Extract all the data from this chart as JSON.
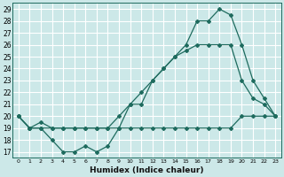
{
  "xlabel": "Humidex (Indice chaleur)",
  "bg_color": "#cce8e8",
  "grid_color": "#ffffff",
  "line_color": "#1e6b5e",
  "xlim": [
    -0.5,
    23.5
  ],
  "ylim": [
    16.5,
    29.5
  ],
  "xticks": [
    0,
    1,
    2,
    3,
    4,
    5,
    6,
    7,
    8,
    9,
    10,
    11,
    12,
    13,
    14,
    15,
    16,
    17,
    18,
    19,
    20,
    21,
    22,
    23
  ],
  "yticks": [
    17,
    18,
    19,
    20,
    21,
    22,
    23,
    24,
    25,
    26,
    27,
    28,
    29
  ],
  "line1_x": [
    0,
    1,
    2,
    3,
    4,
    5,
    6,
    7,
    8,
    9,
    10,
    11,
    12,
    13,
    14,
    15,
    16,
    17,
    18,
    19,
    20,
    21,
    22,
    23
  ],
  "line1_y": [
    20,
    19,
    19,
    19,
    19,
    19,
    19,
    19,
    19,
    19,
    19,
    19,
    19,
    19,
    19,
    19,
    19,
    19,
    19,
    19,
    20,
    20,
    20,
    20
  ],
  "line2_x": [
    0,
    1,
    2,
    3,
    4,
    5,
    6,
    7,
    8,
    9,
    10,
    11,
    12,
    13,
    14,
    15,
    16,
    17,
    18,
    19,
    20,
    21,
    22,
    23
  ],
  "line2_y": [
    20,
    19,
    19,
    18,
    17,
    17,
    17.5,
    17,
    17.5,
    19,
    21,
    22,
    23,
    24,
    25,
    25.5,
    26,
    26,
    26,
    26,
    23,
    21.5,
    21,
    20
  ],
  "line3_x": [
    0,
    1,
    2,
    3,
    4,
    5,
    6,
    7,
    8,
    9,
    10,
    11,
    12,
    13,
    14,
    15,
    16,
    17,
    18,
    19,
    20,
    21,
    22,
    23
  ],
  "line3_y": [
    20,
    19,
    19.5,
    19,
    19,
    19,
    19,
    19,
    19,
    20,
    21,
    21,
    23,
    24,
    25,
    26,
    28,
    28,
    29,
    28.5,
    26,
    23,
    21.5,
    20
  ]
}
